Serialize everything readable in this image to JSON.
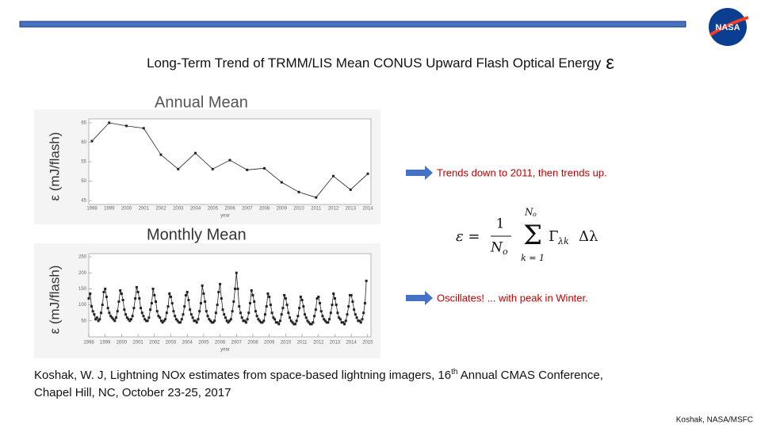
{
  "title": "Long-Term Trend of TRMM/LIS Mean CONUS Upward Flash Optical Energy",
  "title_symbol": "ε",
  "logo_text": "NASA",
  "annual": {
    "type": "line",
    "heading": "Annual  Mean",
    "ylabel": "ε (mJ/flash)",
    "xlabel": "year",
    "categories": [
      "1998",
      "1999",
      "2000",
      "2001",
      "2002",
      "2003",
      "2004",
      "2005",
      "2006",
      "2007",
      "2008",
      "2009",
      "2010",
      "2011",
      "2012",
      "2013",
      "2014"
    ],
    "values": [
      60.3,
      65.0,
      64.2,
      63.6,
      56.8,
      53.1,
      57.2,
      53.1,
      55.4,
      52.9,
      53.3,
      49.7,
      47.2,
      45.8,
      51.3,
      47.8,
      51.9
    ],
    "ylim": [
      44,
      66
    ],
    "yticks": [
      45,
      50,
      55,
      60,
      65
    ],
    "color": "#222222"
  },
  "monthly": {
    "type": "line",
    "heading": "Monthly  Mean",
    "ylabel": "ε (mJ/flash)",
    "xlabel": "year",
    "xlim": [
      1998,
      2015.2
    ],
    "xticks": [
      1998,
      1999,
      2000,
      2001,
      2002,
      2003,
      2004,
      2005,
      2006,
      2007,
      2008,
      2009,
      2010,
      2011,
      2012,
      2013,
      2014,
      2015
    ],
    "values": [
      120,
      135,
      95,
      80,
      70,
      55,
      60,
      50,
      55,
      75,
      100,
      140,
      150,
      125,
      90,
      75,
      65,
      60,
      55,
      50,
      60,
      80,
      110,
      145,
      135,
      115,
      85,
      70,
      60,
      55,
      50,
      55,
      65,
      90,
      120,
      155,
      140,
      120,
      90,
      75,
      65,
      55,
      50,
      50,
      60,
      85,
      105,
      150,
      130,
      110,
      80,
      65,
      60,
      50,
      45,
      50,
      55,
      75,
      95,
      135,
      125,
      105,
      80,
      65,
      55,
      50,
      45,
      45,
      55,
      70,
      95,
      130,
      140,
      115,
      85,
      70,
      60,
      50,
      50,
      45,
      55,
      80,
      105,
      160,
      135,
      110,
      80,
      65,
      55,
      50,
      45,
      45,
      50,
      75,
      100,
      140,
      165,
      120,
      85,
      70,
      60,
      50,
      45,
      50,
      55,
      80,
      110,
      150,
      200,
      150,
      95,
      75,
      60,
      50,
      50,
      45,
      55,
      75,
      105,
      145,
      130,
      110,
      80,
      65,
      55,
      50,
      45,
      45,
      50,
      70,
      95,
      135,
      125,
      100,
      75,
      60,
      55,
      45,
      45,
      40,
      50,
      70,
      90,
      130,
      120,
      100,
      75,
      60,
      50,
      45,
      40,
      40,
      50,
      65,
      90,
      125,
      115,
      95,
      70,
      60,
      50,
      45,
      40,
      40,
      45,
      65,
      85,
      120,
      125,
      105,
      80,
      65,
      55,
      50,
      45,
      45,
      55,
      75,
      100,
      135,
      120,
      100,
      75,
      60,
      55,
      45,
      45,
      40,
      50,
      70,
      95,
      130,
      130,
      110,
      85,
      70,
      60,
      50,
      50,
      45,
      55,
      75,
      105,
      175
    ],
    "ylim": [
      0,
      260
    ],
    "yticks": [
      50,
      100,
      150,
      200,
      250
    ],
    "color": "#222222"
  },
  "annotations": [
    "Trends down to 2011, then trends up.",
    "Oscillates!  ... with peak in Winter."
  ],
  "equation": {
    "lhs": "ε =",
    "numerator": "1",
    "denominator": "N",
    "denominator_sub": "o",
    "sigma": "Σ",
    "upper": "N",
    "upper_sub": "o",
    "lower": "k = 1",
    "term": "Γ",
    "term_sub": "λk",
    "delta": "Δλ"
  },
  "citation": {
    "line1_a": "Koshak, W. J, Lightning NOx estimates from space-based lightning imagers, 16",
    "line1_sup": "th",
    "line1_b": " Annual CMAS Conference,",
    "line2": "Chapel Hill, NC, October 23-25, 2017"
  },
  "footer": "Koshak, NASA/MSFC"
}
